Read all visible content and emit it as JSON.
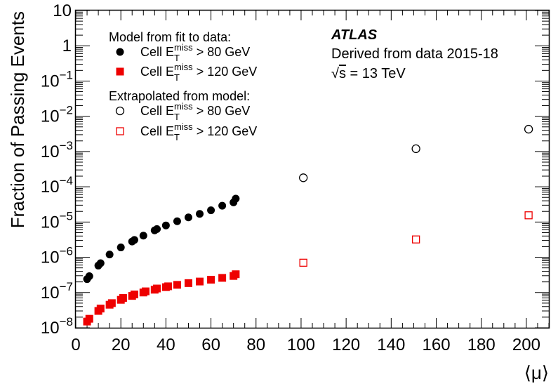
{
  "chart_data": {
    "type": "scatter",
    "xlabel": "⟨μ⟩",
    "ylabel": "Fraction of Passing Events",
    "xlim": [
      0,
      210
    ],
    "ylim": [
      1e-08,
      10
    ],
    "yscale": "log",
    "x_ticks": [
      0,
      20,
      40,
      60,
      80,
      100,
      120,
      140,
      160,
      180,
      200
    ],
    "y_ticks": [
      {
        "value": 1e-08,
        "base": "10",
        "exp": "−8"
      },
      {
        "value": 1e-07,
        "base": "10",
        "exp": "−7"
      },
      {
        "value": 1e-06,
        "base": "10",
        "exp": "−6"
      },
      {
        "value": 1e-05,
        "base": "10",
        "exp": "−5"
      },
      {
        "value": 0.0001,
        "base": "10",
        "exp": "−4"
      },
      {
        "value": 0.001,
        "base": "10",
        "exp": "−3"
      },
      {
        "value": 0.01,
        "base": "10",
        "exp": "−2"
      },
      {
        "value": 0.1,
        "base": "10",
        "exp": "−1"
      },
      {
        "value": 1,
        "base": "1",
        "exp": ""
      },
      {
        "value": 10,
        "base": "10",
        "exp": ""
      }
    ],
    "grid": false,
    "legend_position": "top-left",
    "legend_headers": [
      "Model from fit to data:",
      "Extrapolated from model:"
    ],
    "series": [
      {
        "name": "Cell E_T^miss > 80 GeV",
        "label_prefix": "Cell E",
        "label_sub": "T",
        "label_sup": "miss",
        "label_suffix": " > 80 GeV",
        "group": "Model from fit to data:",
        "marker": "filled-circle",
        "color": "#000000",
        "x": [
          5,
          6,
          10,
          11,
          15,
          20,
          25,
          26,
          30,
          35,
          36,
          40,
          45,
          50,
          55,
          60,
          65,
          70,
          71
        ],
        "y": [
          2.4e-07,
          2.9e-07,
          5.8e-07,
          6.8e-07,
          1.2e-06,
          1.9e-06,
          2.8e-06,
          3.1e-06,
          4.1e-06,
          5.8e-06,
          6.3e-06,
          8e-06,
          1.05e-05,
          1.35e-05,
          1.7e-05,
          2.15e-05,
          2.9e-05,
          3.6e-05,
          4.6e-05
        ]
      },
      {
        "name": "Cell E_T^miss > 120 GeV",
        "label_prefix": "Cell E",
        "label_sub": "T",
        "label_sup": "miss",
        "label_suffix": " > 120 GeV",
        "group": "Model from fit to data:",
        "marker": "filled-square",
        "color": "#ee0000",
        "x": [
          5,
          6,
          10,
          11,
          15,
          16,
          20,
          21,
          25,
          26,
          30,
          31,
          35,
          36,
          40,
          41,
          45,
          50,
          55,
          60,
          65,
          70,
          71
        ],
        "y": [
          1.5e-08,
          1.8e-08,
          3e-08,
          3.5e-08,
          4.5e-08,
          5e-08,
          6.2e-08,
          7e-08,
          8e-08,
          8.8e-08,
          1e-07,
          1.08e-07,
          1.2e-07,
          1.3e-07,
          1.42e-07,
          1.5e-07,
          1.65e-07,
          1.85e-07,
          2.05e-07,
          2.3e-07,
          2.6e-07,
          2.95e-07,
          3.3e-07
        ]
      },
      {
        "name": "Cell E_T^miss > 80 GeV",
        "label_prefix": "Cell E",
        "label_sub": "T",
        "label_sup": "miss",
        "label_suffix": " > 80 GeV",
        "group": "Extrapolated from model:",
        "marker": "open-circle",
        "color": "#000000",
        "x": [
          101,
          151,
          201
        ],
        "y": [
          0.00018,
          0.0012,
          0.0043
        ]
      },
      {
        "name": "Cell E_T^miss > 120 GeV",
        "label_prefix": "Cell E",
        "label_sub": "T",
        "label_sup": "miss",
        "label_suffix": " > 120 GeV",
        "group": "Extrapolated from model:",
        "marker": "open-square",
        "color": "#ee0000",
        "x": [
          101,
          151,
          201
        ],
        "y": [
          7e-07,
          3.2e-06,
          1.55e-05
        ]
      }
    ],
    "annotations": {
      "experiment": "ATLAS",
      "line2": "Derived from data 2015-18",
      "sqrt_symbol": "√",
      "energy_var": "s",
      "energy_value": " = 13 TeV"
    }
  }
}
